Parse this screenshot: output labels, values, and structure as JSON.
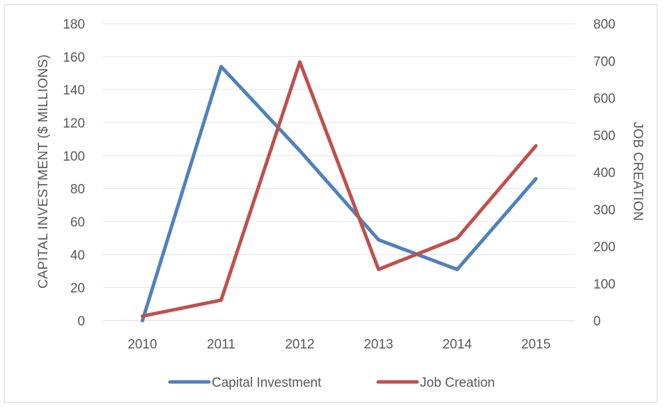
{
  "chart_data": {
    "type": "line",
    "categories": [
      "2010",
      "2011",
      "2012",
      "2013",
      "2014",
      "2015"
    ],
    "series": [
      {
        "name": "Capital Investment",
        "axis": "left",
        "color": "#4f81bd",
        "values": [
          0,
          154,
          103,
          49,
          31,
          86
        ]
      },
      {
        "name": "Job Creation",
        "axis": "right",
        "color": "#c0504d",
        "values": [
          12,
          55,
          697,
          138,
          222,
          471
        ]
      }
    ],
    "ylabel_left": "CAPITAL INVESTMENT ($ MILLIONS)",
    "ylabel_right": "JOB CREATION",
    "ylim_left": [
      0,
      180
    ],
    "ylim_right": [
      0,
      800
    ],
    "yticks_left": [
      "0",
      "20",
      "40",
      "60",
      "80",
      "100",
      "120",
      "140",
      "160",
      "180"
    ],
    "yticks_right": [
      "0",
      "100",
      "200",
      "300",
      "400",
      "500",
      "600",
      "700",
      "800"
    ],
    "grid": true,
    "legend_position": "bottom"
  }
}
